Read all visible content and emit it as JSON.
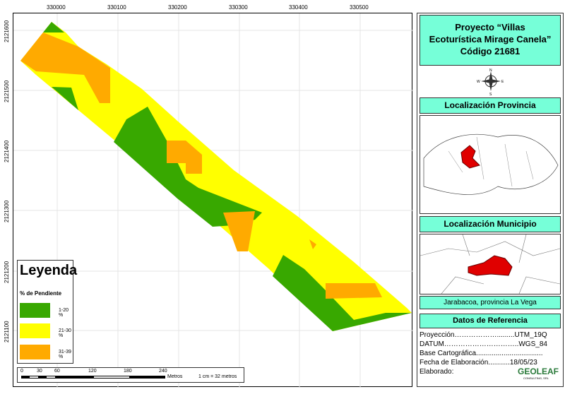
{
  "map": {
    "x_ticks": [
      "330000",
      "330100",
      "330200",
      "330300",
      "330400",
      "330500"
    ],
    "y_ticks": [
      "2121600",
      "2121500",
      "2121400",
      "2121300",
      "2121200",
      "2121100"
    ]
  },
  "legend": {
    "title": "Leyenda",
    "subtitle": "% de Pendiente",
    "items": [
      {
        "label": "1-20 %",
        "color": "#38a800"
      },
      {
        "label": "21-30 %",
        "color": "#ffff00"
      },
      {
        "label": "31-39 %",
        "color": "#ffaa00"
      }
    ]
  },
  "scale": {
    "labels": [
      "0",
      "30",
      "60",
      "120",
      "180",
      "240"
    ],
    "unit": "Metros",
    "ratio": "1 cm = 32 metros"
  },
  "panel": {
    "title_line1": "Proyecto “Villas",
    "title_line2": "Ecoturística Mirage Canela”",
    "title_line3": "Código 21681",
    "compass": {
      "n": "N",
      "s": "S",
      "e": "E",
      "w": "W"
    },
    "prov_title": "Localización Provincia",
    "mun_title": "Localización Municipio",
    "location": "Jarabacoa, provincia La Vega",
    "ref_title": "Datos de Referencia",
    "refs": [
      "Proyección……………….........UTM_19Q",
      "DATUM…………………………..WGS_84",
      "Base  Cartográfica..................................",
      "Fecha de Elaboración...........18/05/23",
      "Elaborado:"
    ],
    "logo": "GEOLEAF",
    "logo_sub": "CONSULTING, SRL"
  }
}
